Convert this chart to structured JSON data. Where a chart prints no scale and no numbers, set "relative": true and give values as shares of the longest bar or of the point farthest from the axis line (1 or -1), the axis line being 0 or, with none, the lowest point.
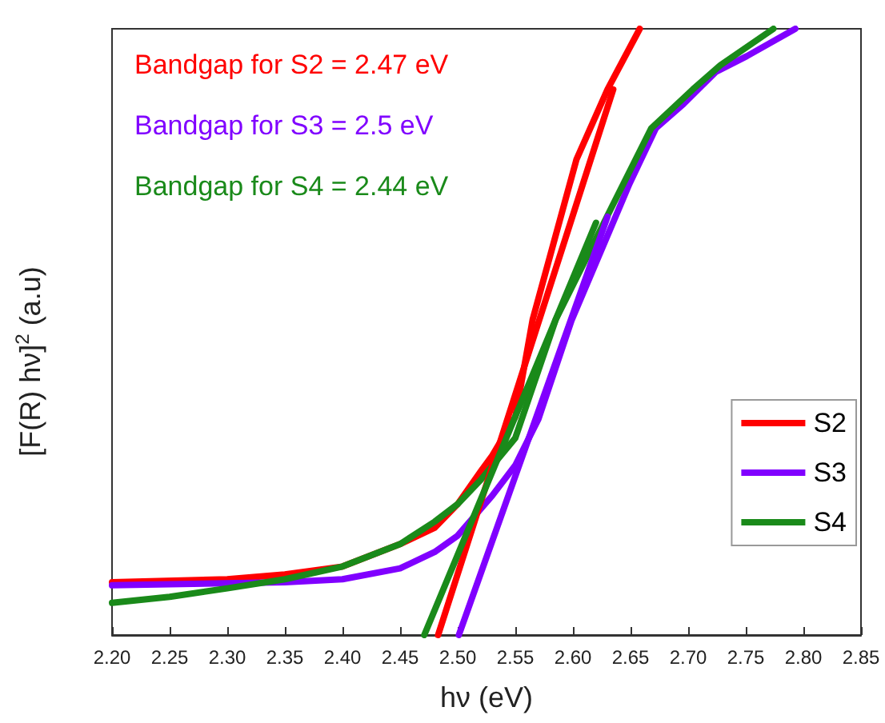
{
  "chart_data": {
    "type": "line",
    "relative": true,
    "xlabel": "hν (eV)",
    "ylabel": "[F(R) hν]$^{2}$ (a.u)",
    "annotations": [
      "Bandgap for S2 = 2.47 eV",
      "Bandgap for S3 = 2.5 eV",
      "Bandgap for S4 = 2.44 eV"
    ],
    "xlim": [
      2.2,
      2.85
    ],
    "xticks": [
      {
        "value": 2.2,
        "label": "2.20"
      },
      {
        "value": 2.25,
        "label": "2.25"
      },
      {
        "value": 2.3,
        "label": "2.30"
      },
      {
        "value": 2.35,
        "label": "2.35"
      },
      {
        "value": 2.4,
        "label": "2.40"
      },
      {
        "value": 2.45,
        "label": "2.45"
      },
      {
        "value": 2.5,
        "label": "2.50"
      },
      {
        "value": 2.55,
        "label": "2.55"
      },
      {
        "value": 2.6,
        "label": "2.60"
      },
      {
        "value": 2.65,
        "label": "2.65"
      },
      {
        "value": 2.7,
        "label": "2.70"
      },
      {
        "value": 2.75,
        "label": "2.75"
      },
      {
        "value": 2.8,
        "label": "2.80"
      },
      {
        "value": 2.85,
        "label": "2.85"
      }
    ],
    "legend": "right",
    "marker": "none",
    "line_style": "solid",
    "grid": false,
    "series": [
      {
        "name": "S2",
        "color": "#ff0000",
        "x": [
          2.2,
          2.3,
          2.35,
          2.4,
          2.45,
          2.48,
          2.5,
          2.52,
          2.53,
          2.55,
          2.565,
          2.603,
          2.63,
          2.658
        ],
        "values": [
          0.087,
          0.092,
          0.1,
          0.113,
          0.15,
          0.177,
          0.216,
          0.27,
          0.296,
          0.36,
          0.52,
          0.784,
          0.9,
          1.0
        ]
      },
      {
        "name": "S3",
        "color": "#8000ff",
        "x": [
          2.2,
          2.35,
          2.4,
          2.45,
          2.48,
          2.5,
          2.53,
          2.55,
          2.57,
          2.599,
          2.649,
          2.672,
          2.696,
          2.724,
          2.751,
          2.793
        ],
        "values": [
          0.082,
          0.087,
          0.092,
          0.11,
          0.137,
          0.164,
          0.23,
          0.28,
          0.356,
          0.52,
          0.744,
          0.836,
          0.876,
          0.929,
          0.955,
          1.0
        ]
      },
      {
        "name": "S4",
        "color": "#1a8a1a",
        "x": [
          2.2,
          2.25,
          2.3,
          2.35,
          2.4,
          2.45,
          2.48,
          2.5,
          2.52,
          2.55,
          2.585,
          2.64,
          2.668,
          2.704,
          2.728,
          2.774
        ],
        "values": [
          0.053,
          0.063,
          0.077,
          0.092,
          0.113,
          0.15,
          0.187,
          0.216,
          0.256,
          0.325,
          0.52,
          0.73,
          0.836,
          0.9,
          0.94,
          1.0
        ]
      },
      {
        "color": "#ff0000",
        "x": [
          2.483,
          2.635
        ],
        "values": [
          0,
          0.9
        ]
      },
      {
        "color": "#8000ff",
        "x": [
          2.501,
          2.63
        ],
        "values": [
          0,
          0.69
        ]
      },
      {
        "color": "#1a8a1a",
        "x": [
          2.471,
          2.62
        ],
        "values": [
          0,
          0.68
        ]
      }
    ]
  }
}
